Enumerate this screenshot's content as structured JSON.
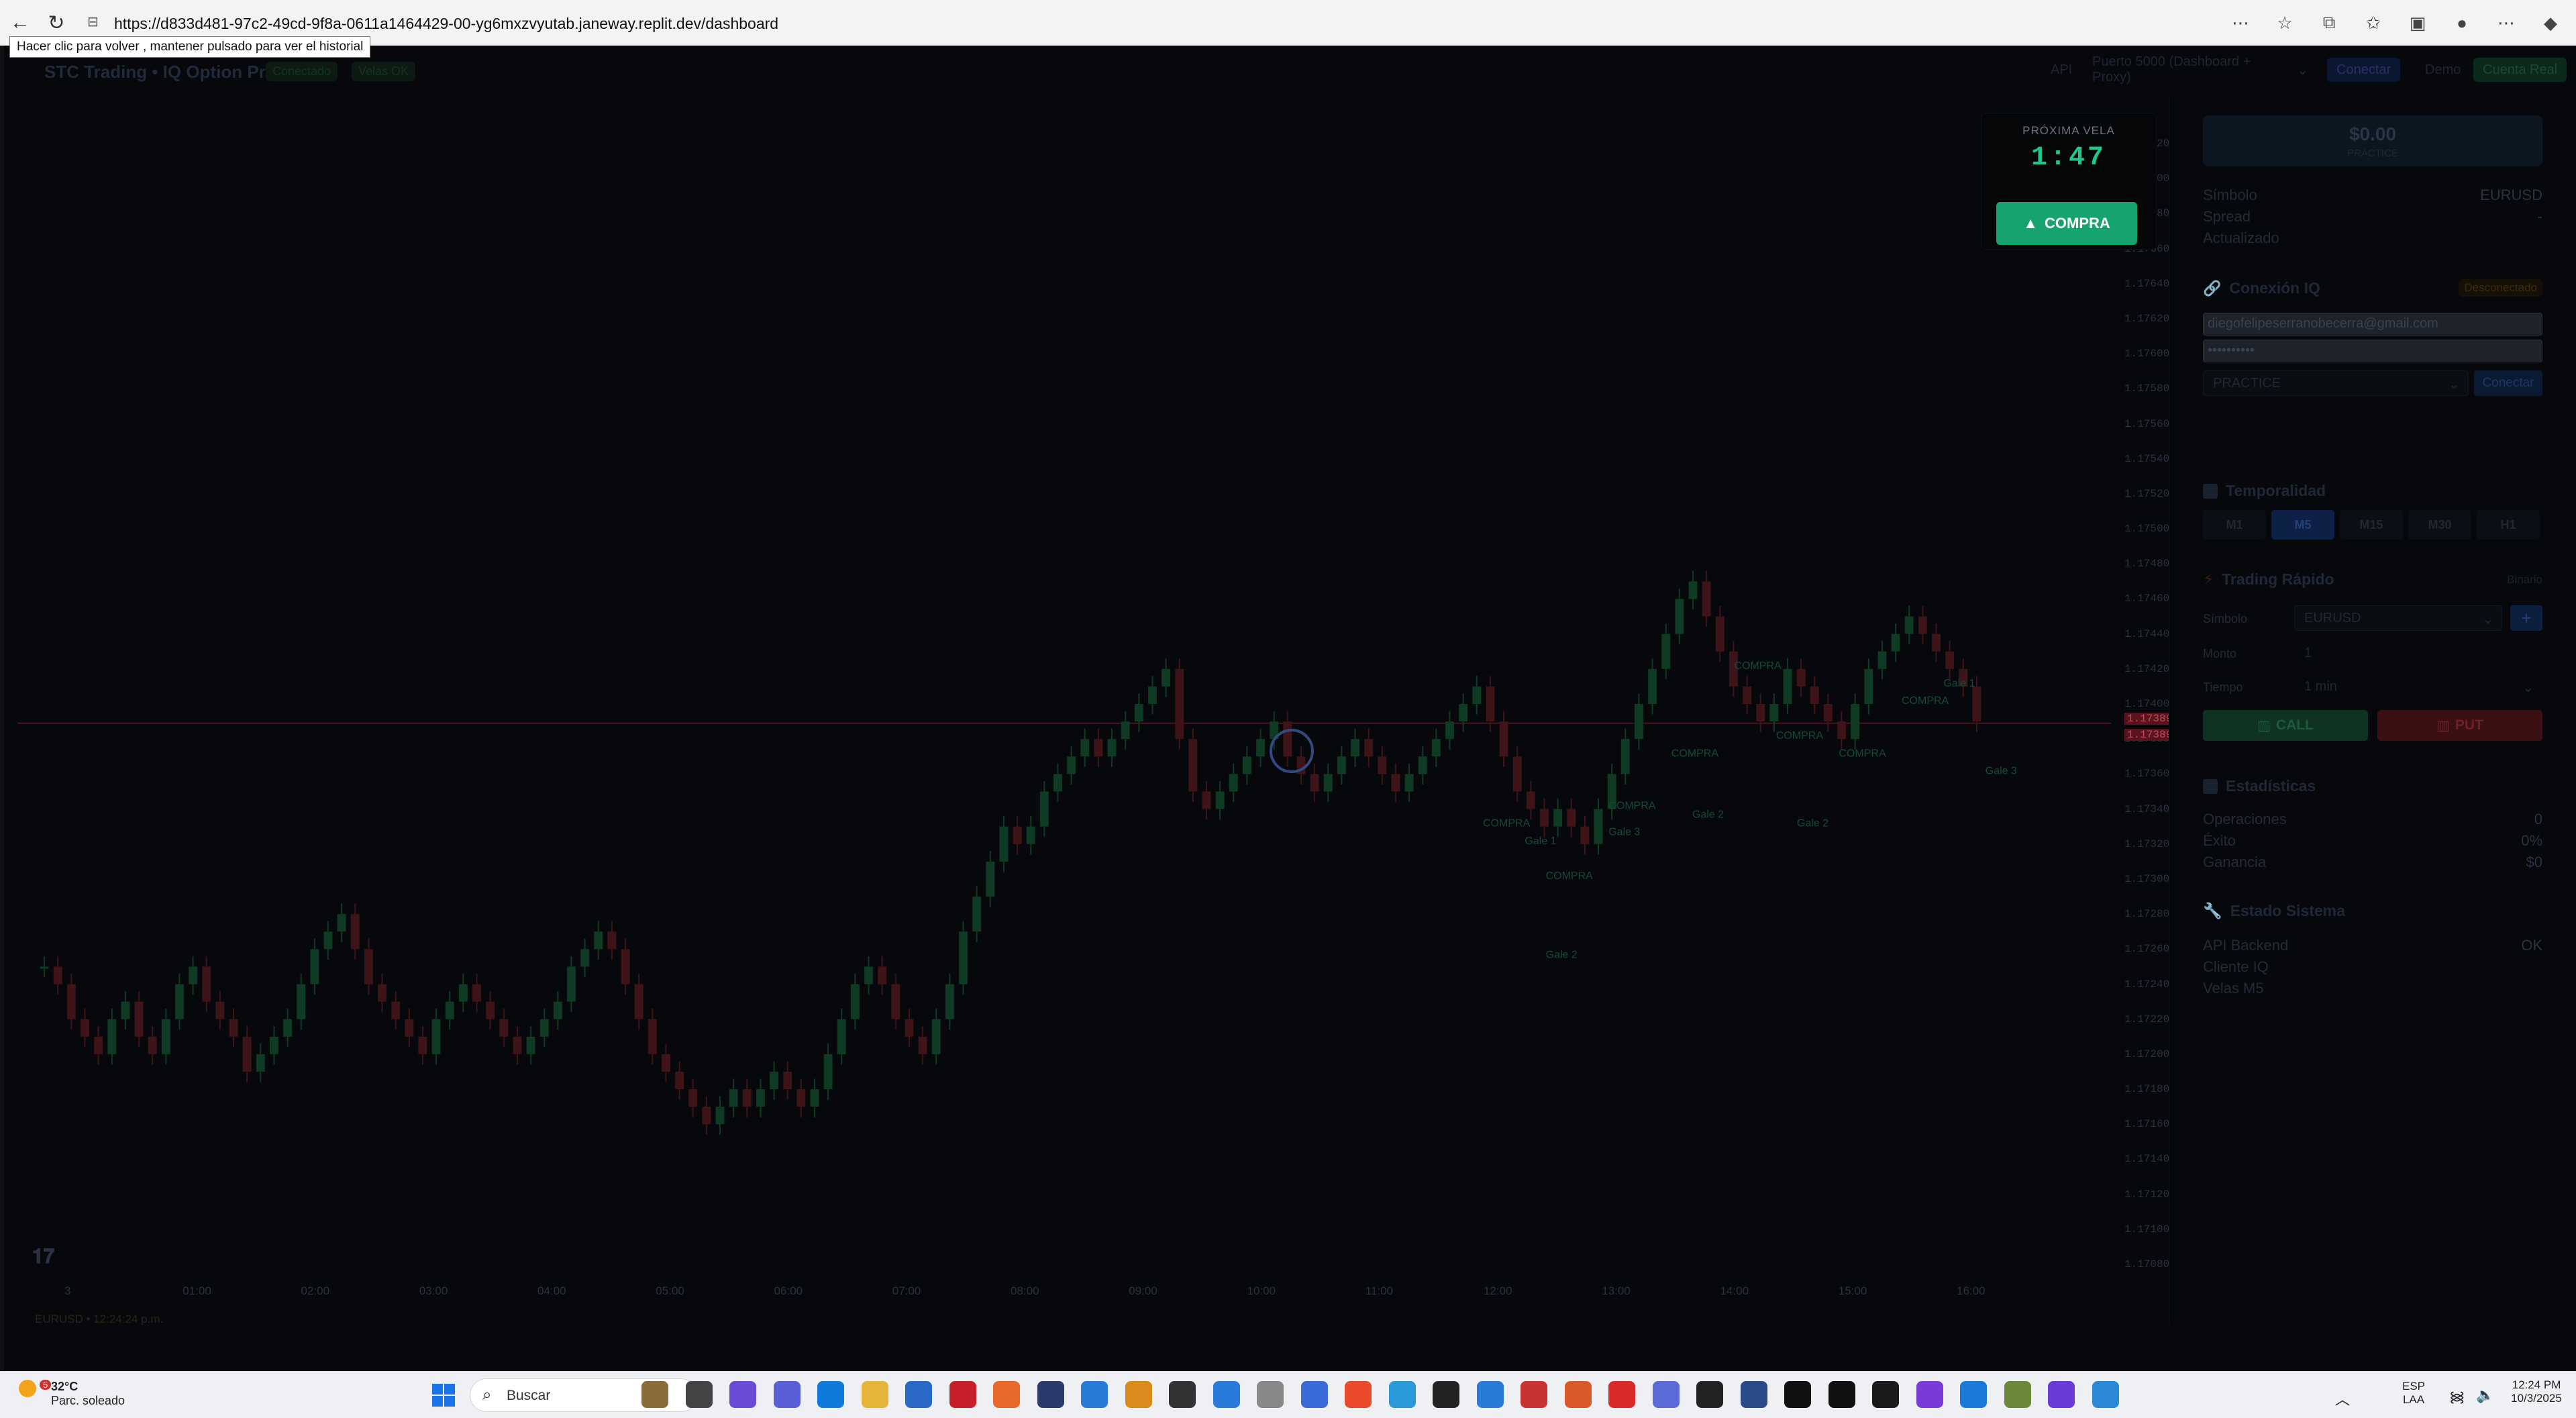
{
  "browser": {
    "url": "https://d833d481-97c2-49cd-9f8a-0611a1464429-00-yg6mxzvyutab.janeway.replit.dev/dashboard",
    "tooltip": "Hacer clic para volver , mantener pulsado para ver el historial"
  },
  "app": {
    "title": "STC Trading • IQ Option Pro",
    "badge_1": "Conectado",
    "badge_2": "Velas OK",
    "header_right": {
      "api_label": "API",
      "port_select": "Puerto 5000 (Dashboard + Proxy)",
      "connect_btn": "Conectar",
      "demo_btn": "Demo",
      "extra_btn": "Cuenta Real"
    }
  },
  "chart_data": {
    "type": "candlestick",
    "symbol": "EURUSD",
    "y_ticks": [
      "1.17720",
      "1.17700",
      "1.17680",
      "1.17660",
      "1.17640",
      "1.17620",
      "1.17600",
      "1.17580",
      "1.17560",
      "1.17540",
      "1.17520",
      "1.17500",
      "1.17480",
      "1.17460",
      "1.17440",
      "1.17420",
      "1.17400",
      "1.17380",
      "1.17360",
      "1.17340",
      "1.17320",
      "1.17300",
      "1.17280",
      "1.17260",
      "1.17240",
      "1.17220",
      "1.17200",
      "1.17180",
      "1.17160",
      "1.17140",
      "1.17120",
      "1.17100",
      "1.17080"
    ],
    "x_ticks": [
      "3",
      "01:00",
      "02:00",
      "03:00",
      "04:00",
      "05:00",
      "06:00",
      "07:00",
      "08:00",
      "09:00",
      "10:00",
      "11:00",
      "12:00",
      "13:00",
      "14:00",
      "15:00",
      "16:00"
    ],
    "ylim": [
      1.1708,
      1.1772
    ],
    "current_price": [
      "1.17389",
      "1.17389"
    ],
    "current_price_value": 1.17389,
    "closes": [
      1.1725,
      1.1724,
      1.1722,
      1.1721,
      1.172,
      1.1722,
      1.1723,
      1.1721,
      1.172,
      1.1722,
      1.1724,
      1.1725,
      1.1723,
      1.1722,
      1.1721,
      1.1719,
      1.172,
      1.1721,
      1.1722,
      1.1724,
      1.1726,
      1.1727,
      1.1728,
      1.1726,
      1.1724,
      1.1723,
      1.1722,
      1.1721,
      1.172,
      1.1722,
      1.1723,
      1.1724,
      1.1723,
      1.1722,
      1.1721,
      1.172,
      1.1721,
      1.1722,
      1.1723,
      1.1725,
      1.1726,
      1.1727,
      1.1726,
      1.1724,
      1.1722,
      1.172,
      1.1719,
      1.1718,
      1.1717,
      1.1716,
      1.1717,
      1.1718,
      1.1717,
      1.1718,
      1.1719,
      1.1718,
      1.1717,
      1.1718,
      1.172,
      1.1722,
      1.1724,
      1.1725,
      1.1724,
      1.1722,
      1.1721,
      1.172,
      1.1722,
      1.1724,
      1.1727,
      1.1729,
      1.1731,
      1.1733,
      1.1732,
      1.1733,
      1.1735,
      1.1736,
      1.1737,
      1.1738,
      1.1737,
      1.1738,
      1.1739,
      1.174,
      1.1741,
      1.1742,
      1.1738,
      1.1735,
      1.1734,
      1.1735,
      1.1736,
      1.1737,
      1.1738,
      1.1739,
      1.1737,
      1.1736,
      1.1735,
      1.1736,
      1.1737,
      1.1738,
      1.1737,
      1.1736,
      1.1735,
      1.1736,
      1.1737,
      1.1738,
      1.1739,
      1.174,
      1.1741,
      1.1739,
      1.1737,
      1.1735,
      1.1734,
      1.1733,
      1.1734,
      1.1733,
      1.1732,
      1.1734,
      1.1736,
      1.1738,
      1.174,
      1.1742,
      1.1744,
      1.1746,
      1.1747,
      1.1745,
      1.1743,
      1.1741,
      1.174,
      1.1739,
      1.174,
      1.1742,
      1.1741,
      1.174,
      1.1739,
      1.1738,
      1.174,
      1.1742,
      1.1743,
      1.1744,
      1.1745,
      1.1744,
      1.1743,
      1.1742,
      1.1741,
      1.1739
    ],
    "annotations": [
      {
        "text": "COMPRA",
        "x": 0.7,
        "y": 1.1733
      },
      {
        "text": "Gale 1",
        "x": 0.72,
        "y": 1.1732
      },
      {
        "text": "COMPRA",
        "x": 0.73,
        "y": 1.173
      },
      {
        "text": "Gale 2",
        "x": 0.73,
        "y": 1.17255
      },
      {
        "text": "COMPRA",
        "x": 0.76,
        "y": 1.1734
      },
      {
        "text": "Gale 3",
        "x": 0.76,
        "y": 1.17325
      },
      {
        "text": "COMPRA",
        "x": 0.79,
        "y": 1.1737
      },
      {
        "text": "Gale 2",
        "x": 0.8,
        "y": 1.17335
      },
      {
        "text": "COMPRA",
        "x": 0.82,
        "y": 1.1742
      },
      {
        "text": "COMPRA",
        "x": 0.84,
        "y": 1.1738
      },
      {
        "text": "Gale 2",
        "x": 0.85,
        "y": 1.1733
      },
      {
        "text": "COMPRA",
        "x": 0.87,
        "y": 1.1737
      },
      {
        "text": "COMPRA",
        "x": 0.9,
        "y": 1.174
      },
      {
        "text": "Gale 1",
        "x": 0.92,
        "y": 1.1741
      },
      {
        "text": "Gale 3",
        "x": 0.94,
        "y": 1.1736
      }
    ]
  },
  "chart_footer": {
    "symbol_line": "EURUSD • 12:24:24 p.m."
  },
  "next_candle": {
    "label": "PRÓXIMA VELA",
    "timer": "1:47",
    "buy_label": "COMPRA"
  },
  "panel": {
    "balance": "$0.00",
    "balance_mode": "PRACTICE",
    "info": [
      {
        "k": "Símbolo",
        "v": "EURUSD"
      },
      {
        "k": "Spread",
        "v": "-"
      },
      {
        "k": "Actualizado",
        "v": ""
      }
    ],
    "conn": {
      "title": "Conexión IQ",
      "status": "Desconectado",
      "email": "diegofelipeserranobecerra@gmail.com",
      "password": "••••••••••",
      "mode": "PRACTICE",
      "connect": "Conectar"
    },
    "timeframe": {
      "title": "Temporalidad",
      "options": [
        "M1",
        "M5",
        "M15",
        "M30",
        "H1"
      ],
      "active": "M5"
    },
    "quick": {
      "title": "Trading Rápido",
      "type": "Binario",
      "symbol_label": "Símbolo",
      "symbol_value": "EURUSD",
      "amount_label": "Monto",
      "amount_value": "1",
      "time_label": "Tiempo",
      "time_value": "1 min",
      "call": "CALL",
      "put": "PUT"
    },
    "stats": {
      "title": "Estadísticas",
      "rows": [
        {
          "k": "Operaciones",
          "v": "0"
        },
        {
          "k": "Éxito",
          "v": "0%"
        },
        {
          "k": "Ganancia",
          "v": "$0"
        }
      ]
    },
    "system": {
      "title": "Estado Sistema",
      "rows": [
        {
          "k": "API Backend",
          "v": "OK"
        },
        {
          "k": "Cliente IQ",
          "v": ""
        },
        {
          "k": "Velas M5",
          "v": ""
        }
      ]
    }
  },
  "taskbar": {
    "temp": "32°C",
    "weather": "Parc. soleado",
    "weather_badge": "5",
    "search": "Buscar",
    "lang_1": "ESP",
    "lang_2": "LAA",
    "time": "12:24 PM",
    "date": "10/3/2025"
  }
}
